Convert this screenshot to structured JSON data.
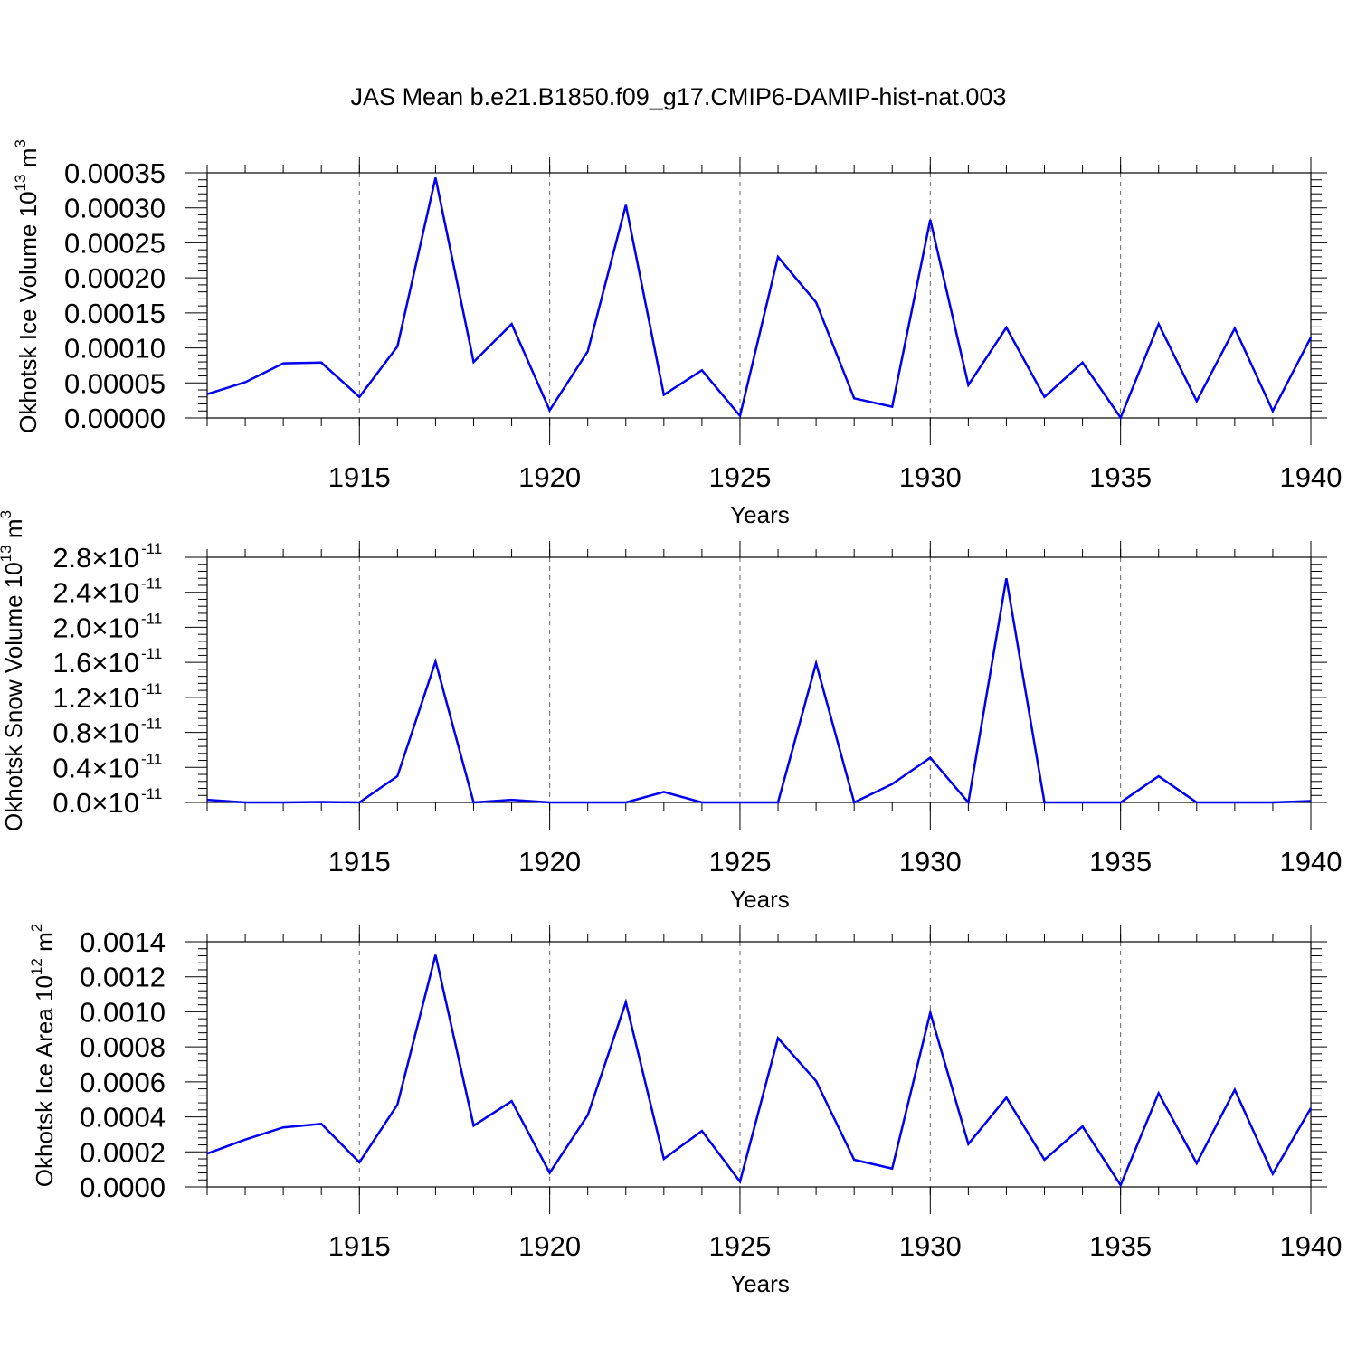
{
  "title": "JAS Mean b.e21.B1850.f09_g17.CMIP6-DAMIP-hist-nat.003",
  "colors": {
    "series": "#0000ee",
    "axis": "#000000",
    "grid": "#666666"
  },
  "chart_data": [
    {
      "type": "line",
      "ylabel": "Okhotsk Ice Volume 10",
      "ylabel_exp": "13",
      "ylabel_unit": "m",
      "ylabel_unit_exp": "3",
      "xlabel": "Years",
      "xlim": [
        1911,
        1940
      ],
      "ylim": [
        0,
        0.00035
      ],
      "y_ticks": [
        0,
        5e-05,
        0.0001,
        0.00015,
        0.0002,
        0.00025,
        0.0003,
        0.00035
      ],
      "y_tick_labels": [
        "0.00000",
        "0.00005",
        "0.00010",
        "0.00015",
        "0.00020",
        "0.00025",
        "0.00030",
        "0.00035"
      ],
      "y_tick_exps": [],
      "x_ticks": [
        1915,
        1920,
        1925,
        1930,
        1935,
        1940
      ],
      "x_tick_labels": [
        "1915",
        "1920",
        "1925",
        "1930",
        "1935",
        "1940"
      ],
      "x": [
        1911,
        1912,
        1913,
        1914,
        1915,
        1916,
        1917,
        1918,
        1919,
        1920,
        1921,
        1922,
        1923,
        1924,
        1925,
        1926,
        1927,
        1928,
        1929,
        1930,
        1931,
        1932,
        1933,
        1934,
        1935,
        1936,
        1937,
        1938,
        1939,
        1940
      ],
      "values": [
        3.4e-05,
        5.1e-05,
        7.8e-05,
        7.9e-05,
        3e-05,
        0.000102,
        0.000343,
        8e-05,
        0.000134,
        1.1e-05,
        9.5e-05,
        0.000304,
        3.3e-05,
        6.8e-05,
        3e-06,
        0.00023,
        0.000165,
        2.8e-05,
        1.6e-05,
        0.000283,
        4.7e-05,
        0.000129,
        3e-05,
        7.9e-05,
        5e-07,
        0.000134,
        2.4e-05,
        0.000128,
        1e-05,
        0.000115
      ],
      "grid": "vertical dashed at major x ticks"
    },
    {
      "type": "line",
      "ylabel": "Okhotsk Snow Volume 10",
      "ylabel_exp": "13",
      "ylabel_unit": "m",
      "ylabel_unit_exp": "3",
      "xlabel": "Years",
      "xlim": [
        1911,
        1940
      ],
      "ylim": [
        0,
        2.8e-11
      ],
      "y_ticks": [
        0,
        4e-12,
        8e-12,
        1.2e-11,
        1.6e-11,
        2e-11,
        2.4e-11,
        2.8e-11
      ],
      "y_tick_labels": [
        "0.0×10",
        "0.4×10",
        "0.8×10",
        "1.2×10",
        "1.6×10",
        "2.0×10",
        "2.4×10",
        "2.8×10"
      ],
      "y_tick_exps": [
        "-11",
        "-11",
        "-11",
        "-11",
        "-11",
        "-11",
        "-11",
        "-11"
      ],
      "x_ticks": [
        1915,
        1920,
        1925,
        1930,
        1935,
        1940
      ],
      "x_tick_labels": [
        "1915",
        "1920",
        "1925",
        "1930",
        "1935",
        "1940"
      ],
      "x": [
        1911,
        1912,
        1913,
        1914,
        1915,
        1916,
        1917,
        1918,
        1919,
        1920,
        1921,
        1922,
        1923,
        1924,
        1925,
        1926,
        1927,
        1928,
        1929,
        1930,
        1931,
        1932,
        1933,
        1934,
        1935,
        1936,
        1937,
        1938,
        1939,
        1940
      ],
      "values": [
        3e-13,
        0,
        0,
        5e-14,
        0,
        3e-12,
        1.61e-11,
        0,
        3e-13,
        0,
        0,
        0,
        1.2e-12,
        0,
        0,
        0,
        1.59e-11,
        0,
        2.1e-12,
        5.1e-12,
        0,
        2.56e-11,
        0,
        0,
        0,
        3e-12,
        0,
        0,
        0,
        1.5e-13
      ],
      "grid": "vertical dashed at major x ticks"
    },
    {
      "type": "line",
      "ylabel": "Okhotsk Ice Area 10",
      "ylabel_exp": "12",
      "ylabel_unit": "m",
      "ylabel_unit_exp": "2",
      "xlabel": "Years",
      "xlim": [
        1911,
        1940
      ],
      "ylim": [
        0,
        0.0014
      ],
      "y_ticks": [
        0,
        0.0002,
        0.0004,
        0.0006,
        0.0008,
        0.001,
        0.0012,
        0.0014
      ],
      "y_tick_labels": [
        "0.0000",
        "0.0002",
        "0.0004",
        "0.0006",
        "0.0008",
        "0.0010",
        "0.0012",
        "0.0014"
      ],
      "y_tick_exps": [],
      "x_ticks": [
        1915,
        1920,
        1925,
        1930,
        1935,
        1940
      ],
      "x_tick_labels": [
        "1915",
        "1920",
        "1925",
        "1930",
        "1935",
        "1940"
      ],
      "x": [
        1911,
        1912,
        1913,
        1914,
        1915,
        1916,
        1917,
        1918,
        1919,
        1920,
        1921,
        1922,
        1923,
        1924,
        1925,
        1926,
        1927,
        1928,
        1929,
        1930,
        1931,
        1932,
        1933,
        1934,
        1935,
        1936,
        1937,
        1938,
        1939,
        1940
      ],
      "values": [
        0.00019,
        0.00027,
        0.00034,
        0.00036,
        0.00014,
        0.00047,
        0.001325,
        0.00035,
        0.00049,
        8e-05,
        0.00041,
        0.001055,
        0.00016,
        0.00032,
        3e-05,
        0.00085,
        0.000605,
        0.000155,
        0.000105,
        0.000995,
        0.000245,
        0.00051,
        0.000155,
        0.000345,
        1e-05,
        0.000535,
        0.000135,
        0.000555,
        7.5e-05,
        0.00045
      ],
      "grid": "vertical dashed at major x ticks"
    }
  ]
}
